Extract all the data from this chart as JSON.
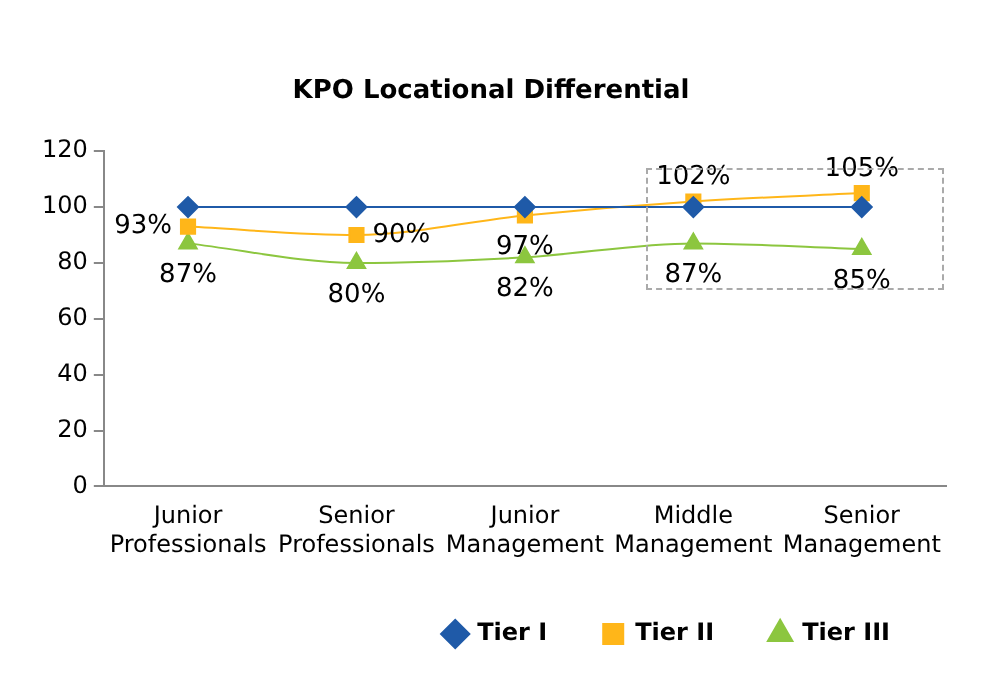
{
  "chart_data": {
    "type": "line",
    "title": "KPO Locational Differential",
    "categories": [
      "Junior Professionals",
      "Senior Professionals",
      "Junior Management",
      "Middle Management",
      "Senior Management"
    ],
    "series": [
      {
        "name": "Tier I",
        "color": "#1f5aa8",
        "marker": "diamond",
        "values": [
          100,
          100,
          100,
          100,
          100
        ]
      },
      {
        "name": "Tier II",
        "color": "#ffb619",
        "marker": "square",
        "values": [
          93,
          90,
          97,
          102,
          105
        ],
        "value_labels": [
          "93%",
          "90%",
          "97%",
          "102%",
          "105%"
        ]
      },
      {
        "name": "Tier III",
        "color": "#8cc63f",
        "marker": "triangle",
        "values": [
          87,
          80,
          82,
          87,
          85
        ],
        "value_labels": [
          "87%",
          "80%",
          "82%",
          "87%",
          "85%"
        ]
      }
    ],
    "ylim": [
      0,
      120
    ],
    "yticks": [
      0,
      20,
      40,
      60,
      80,
      100,
      120
    ],
    "grid": false,
    "legend": "bottom right",
    "line_style": "solid"
  }
}
